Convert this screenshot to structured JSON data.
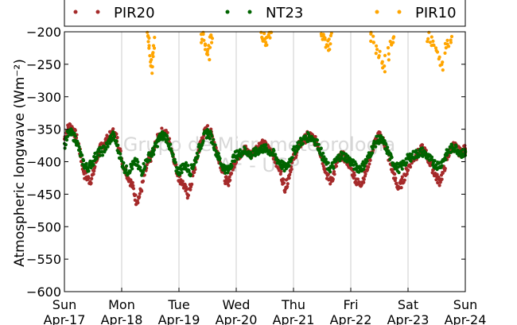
{
  "chart_data": {
    "type": "scatter",
    "ylabel": "Atmospheric longwave (Wm⁻²)",
    "ylim": [
      -600,
      -200
    ],
    "yticks": [
      -200,
      -250,
      -300,
      -350,
      -400,
      -450,
      -500,
      -550,
      -600
    ],
    "ytick_labels": [
      "−200",
      "−250",
      "−300",
      "−350",
      "−400",
      "−450",
      "−500",
      "−550",
      "−600"
    ],
    "xlim": [
      0,
      7
    ],
    "xticks": [
      {
        "day": "Sun",
        "date": "Apr-17"
      },
      {
        "day": "Mon",
        "date": "Apr-18"
      },
      {
        "day": "Tue",
        "date": "Apr-19"
      },
      {
        "day": "Wed",
        "date": "Apr-20"
      },
      {
        "day": "Thu",
        "date": "Apr-21"
      },
      {
        "day": "Fri",
        "date": "Apr-22"
      },
      {
        "day": "Sat",
        "date": "Apr-23"
      },
      {
        "day": "Sun",
        "date": "Apr-24"
      }
    ],
    "grid": "vertical",
    "legend_position": "top",
    "watermark": [
      "Grupo de Micrometeorologia",
      "AF - USP"
    ],
    "series": [
      {
        "name": "PIR20",
        "color": "#a52a2a",
        "x": [
          0.0,
          0.05,
          0.1,
          0.15,
          0.2,
          0.25,
          0.3,
          0.35,
          0.4,
          0.45,
          0.5,
          0.55,
          0.6,
          0.65,
          0.7,
          0.75,
          0.8,
          0.85,
          0.9,
          0.95,
          1.0,
          1.05,
          1.1,
          1.15,
          1.2,
          1.25,
          1.3,
          1.35,
          1.4,
          1.45,
          1.5,
          1.55,
          1.6,
          1.65,
          1.7,
          1.75,
          1.8,
          1.85,
          1.9,
          1.95,
          2.0,
          2.05,
          2.1,
          2.15,
          2.2,
          2.25,
          2.3,
          2.35,
          2.4,
          2.45,
          2.5,
          2.55,
          2.6,
          2.65,
          2.7,
          2.75,
          2.8,
          2.85,
          2.9,
          2.95,
          3.0,
          3.05,
          3.1,
          3.15,
          3.2,
          3.25,
          3.3,
          3.35,
          3.4,
          3.45,
          3.5,
          3.55,
          3.6,
          3.65,
          3.7,
          3.75,
          3.8,
          3.85,
          3.9,
          3.95,
          4.0,
          4.05,
          4.1,
          4.15,
          4.2,
          4.25,
          4.3,
          4.35,
          4.4,
          4.45,
          4.5,
          4.55,
          4.6,
          4.65,
          4.7,
          4.75,
          4.8,
          4.85,
          4.9,
          4.95,
          5.0,
          5.05,
          5.1,
          5.15,
          5.2,
          5.25,
          5.3,
          5.35,
          5.4,
          5.45,
          5.5,
          5.55,
          5.6,
          5.65,
          5.7,
          5.75,
          5.8,
          5.85,
          5.9,
          5.95,
          6.0,
          6.05,
          6.1,
          6.15,
          6.2,
          6.25,
          6.3,
          6.35,
          6.4,
          6.45,
          6.5,
          6.55,
          6.6,
          6.65,
          6.7,
          6.75,
          6.8,
          6.85,
          6.9,
          6.95,
          7.0
        ],
        "y": [
          -365,
          -350,
          -345,
          -350,
          -360,
          -375,
          -400,
          -420,
          -425,
          -430,
          -420,
          -400,
          -385,
          -375,
          -370,
          -365,
          -360,
          -355,
          -360,
          -375,
          -395,
          -410,
          -420,
          -430,
          -440,
          -460,
          -455,
          -440,
          -420,
          -405,
          -395,
          -385,
          -370,
          -360,
          -355,
          -355,
          -360,
          -375,
          -390,
          -410,
          -425,
          -430,
          -440,
          -450,
          -440,
          -420,
          -400,
          -380,
          -365,
          -355,
          -350,
          -355,
          -365,
          -380,
          -395,
          -410,
          -425,
          -435,
          -420,
          -405,
          -395,
          -390,
          -385,
          -380,
          -385,
          -390,
          -385,
          -380,
          -375,
          -370,
          -375,
          -380,
          -385,
          -390,
          -400,
          -410,
          -425,
          -440,
          -430,
          -410,
          -395,
          -385,
          -375,
          -370,
          -365,
          -360,
          -360,
          -365,
          -370,
          -380,
          -395,
          -410,
          -425,
          -430,
          -420,
          -405,
          -395,
          -390,
          -395,
          -400,
          -410,
          -420,
          -430,
          -435,
          -430,
          -420,
          -405,
          -390,
          -375,
          -365,
          -360,
          -365,
          -375,
          -390,
          -405,
          -420,
          -435,
          -440,
          -430,
          -420,
          -410,
          -400,
          -395,
          -390,
          -385,
          -380,
          -385,
          -395,
          -405,
          -415,
          -425,
          -430,
          -420,
          -405,
          -390,
          -380,
          -375,
          -380,
          -385,
          -385,
          -380
        ]
      },
      {
        "name": "NT23",
        "color": "#006400",
        "x": [
          0.0,
          0.05,
          0.1,
          0.15,
          0.2,
          0.25,
          0.3,
          0.35,
          0.4,
          0.45,
          0.5,
          0.55,
          0.6,
          0.65,
          0.7,
          0.75,
          0.8,
          0.85,
          0.9,
          0.95,
          1.0,
          1.05,
          1.1,
          1.15,
          1.2,
          1.25,
          1.3,
          1.35,
          1.4,
          1.45,
          1.5,
          1.55,
          1.6,
          1.65,
          1.7,
          1.75,
          1.8,
          1.85,
          1.9,
          1.95,
          2.0,
          2.05,
          2.1,
          2.15,
          2.2,
          2.25,
          2.3,
          2.35,
          2.4,
          2.45,
          2.5,
          2.55,
          2.6,
          2.65,
          2.7,
          2.75,
          2.8,
          2.85,
          2.9,
          2.95,
          3.0,
          3.05,
          3.1,
          3.15,
          3.2,
          3.25,
          3.3,
          3.35,
          3.4,
          3.45,
          3.5,
          3.55,
          3.6,
          3.65,
          3.7,
          3.75,
          3.8,
          3.85,
          3.9,
          3.95,
          4.0,
          4.05,
          4.1,
          4.15,
          4.2,
          4.25,
          4.3,
          4.35,
          4.4,
          4.45,
          4.5,
          4.55,
          4.6,
          4.65,
          4.7,
          4.75,
          4.8,
          4.85,
          4.9,
          4.95,
          5.0,
          5.05,
          5.1,
          5.15,
          5.2,
          5.25,
          5.3,
          5.35,
          5.4,
          5.45,
          5.5,
          5.55,
          5.6,
          5.65,
          5.7,
          5.75,
          5.8,
          5.85,
          5.9,
          5.95,
          6.0,
          6.05,
          6.1,
          6.15,
          6.2,
          6.25,
          6.3,
          6.35,
          6.4,
          6.45,
          6.5,
          6.55,
          6.6,
          6.65,
          6.7,
          6.75,
          6.8,
          6.85,
          6.9,
          6.95,
          7.0
        ],
        "y": [
          -375,
          -360,
          -355,
          -360,
          -365,
          -380,
          -395,
          -405,
          -410,
          -405,
          -400,
          -390,
          -385,
          -385,
          -380,
          -375,
          -365,
          -360,
          -370,
          -385,
          -400,
          -410,
          -415,
          -410,
          -405,
          -400,
          -410,
          -415,
          -405,
          -395,
          -390,
          -385,
          -375,
          -365,
          -360,
          -360,
          -365,
          -380,
          -395,
          -410,
          -415,
          -410,
          -405,
          -410,
          -415,
          -405,
          -395,
          -380,
          -370,
          -360,
          -355,
          -360,
          -370,
          -385,
          -395,
          -405,
          -410,
          -415,
          -405,
          -395,
          -390,
          -388,
          -385,
          -383,
          -385,
          -390,
          -388,
          -385,
          -382,
          -380,
          -380,
          -382,
          -385,
          -388,
          -395,
          -400,
          -405,
          -410,
          -405,
          -395,
          -385,
          -378,
          -372,
          -368,
          -365,
          -362,
          -362,
          -365,
          -370,
          -378,
          -390,
          -400,
          -408,
          -410,
          -405,
          -398,
          -392,
          -390,
          -392,
          -395,
          -400,
          -405,
          -408,
          -410,
          -408,
          -402,
          -395,
          -385,
          -375,
          -368,
          -365,
          -368,
          -375,
          -385,
          -395,
          -402,
          -408,
          -410,
          -406,
          -400,
          -395,
          -392,
          -390,
          -388,
          -386,
          -385,
          -388,
          -393,
          -398,
          -402,
          -405,
          -405,
          -400,
          -392,
          -385,
          -380,
          -378,
          -380,
          -385,
          -388,
          -385
        ]
      },
      {
        "name": "PIR10",
        "color": "#ffa500",
        "x": [
          1.45,
          1.47,
          1.49,
          1.51,
          1.53,
          1.55,
          1.57,
          2.4,
          2.43,
          2.46,
          2.49,
          2.52,
          2.55,
          2.58,
          3.45,
          3.48,
          3.51,
          3.54,
          3.57,
          3.6,
          4.5,
          4.53,
          4.56,
          4.59,
          4.62,
          4.65,
          5.35,
          5.4,
          5.45,
          5.5,
          5.55,
          5.6,
          5.65,
          5.7,
          5.75,
          6.35,
          6.4,
          6.45,
          6.5,
          6.55,
          6.6,
          6.65,
          6.7,
          6.75
        ],
        "y": [
          -205,
          -215,
          -230,
          -245,
          -255,
          -240,
          -220,
          -210,
          -205,
          -215,
          -225,
          -235,
          -220,
          -210,
          -205,
          -208,
          -212,
          -215,
          -210,
          -205,
          -205,
          -208,
          -212,
          -218,
          -225,
          -212,
          -205,
          -215,
          -225,
          -235,
          -245,
          -255,
          -240,
          -225,
          -210,
          -205,
          -210,
          -220,
          -230,
          -240,
          -250,
          -235,
          -220,
          -210
        ]
      }
    ]
  }
}
